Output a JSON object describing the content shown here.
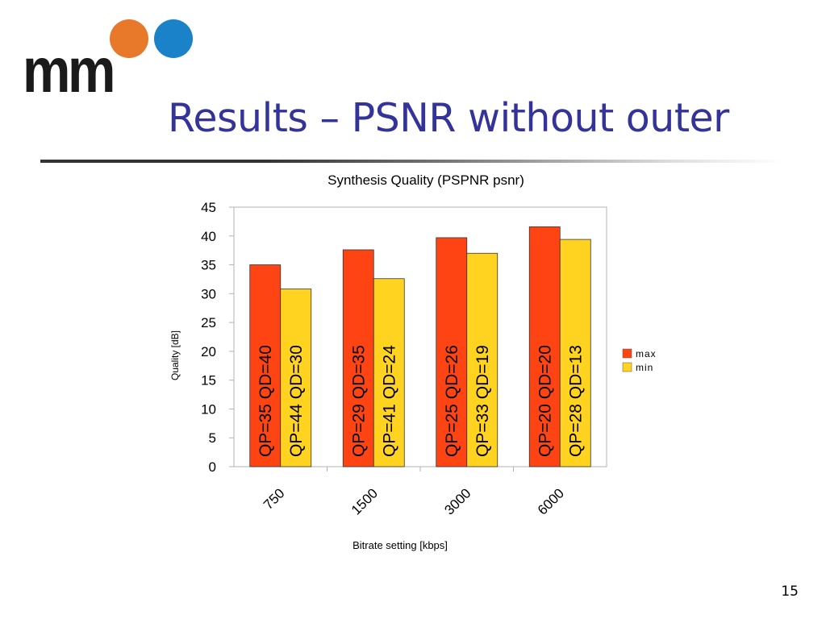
{
  "slide": {
    "title": "Results – PSNR without outer",
    "page_number": "15",
    "logo_text": "mm",
    "colors": {
      "title": "#333399",
      "logo_orange": "#e8782a",
      "logo_blue": "#1a82c8"
    }
  },
  "chart_data": {
    "type": "bar",
    "title": "Synthesis Quality (PSPNR psnr)",
    "xlabel": "Bitrate setting [kbps]",
    "ylabel": "Quality [dB]",
    "categories": [
      "750",
      "1500",
      "3000",
      "6000"
    ],
    "ylim": [
      0,
      45
    ],
    "yticks": [
      0,
      5,
      10,
      15,
      20,
      25,
      30,
      35,
      40,
      45
    ],
    "grid": false,
    "legend_position": "right",
    "series": [
      {
        "name": "max",
        "color": "#ff4413",
        "values": [
          35,
          37.6,
          39.7,
          41.6
        ],
        "labels": [
          "QP=35 QD=40",
          "QP=29 QD=35",
          "QP=25 QD=26",
          "QP=20 QD=20"
        ]
      },
      {
        "name": "min",
        "color": "#ffd320",
        "values": [
          30.8,
          32.6,
          37,
          39.4
        ],
        "labels": [
          "QP=44 QD=30",
          "QP=41 QD=24",
          "QP=33 QD=19",
          "QP=28 QD=13"
        ]
      }
    ]
  }
}
